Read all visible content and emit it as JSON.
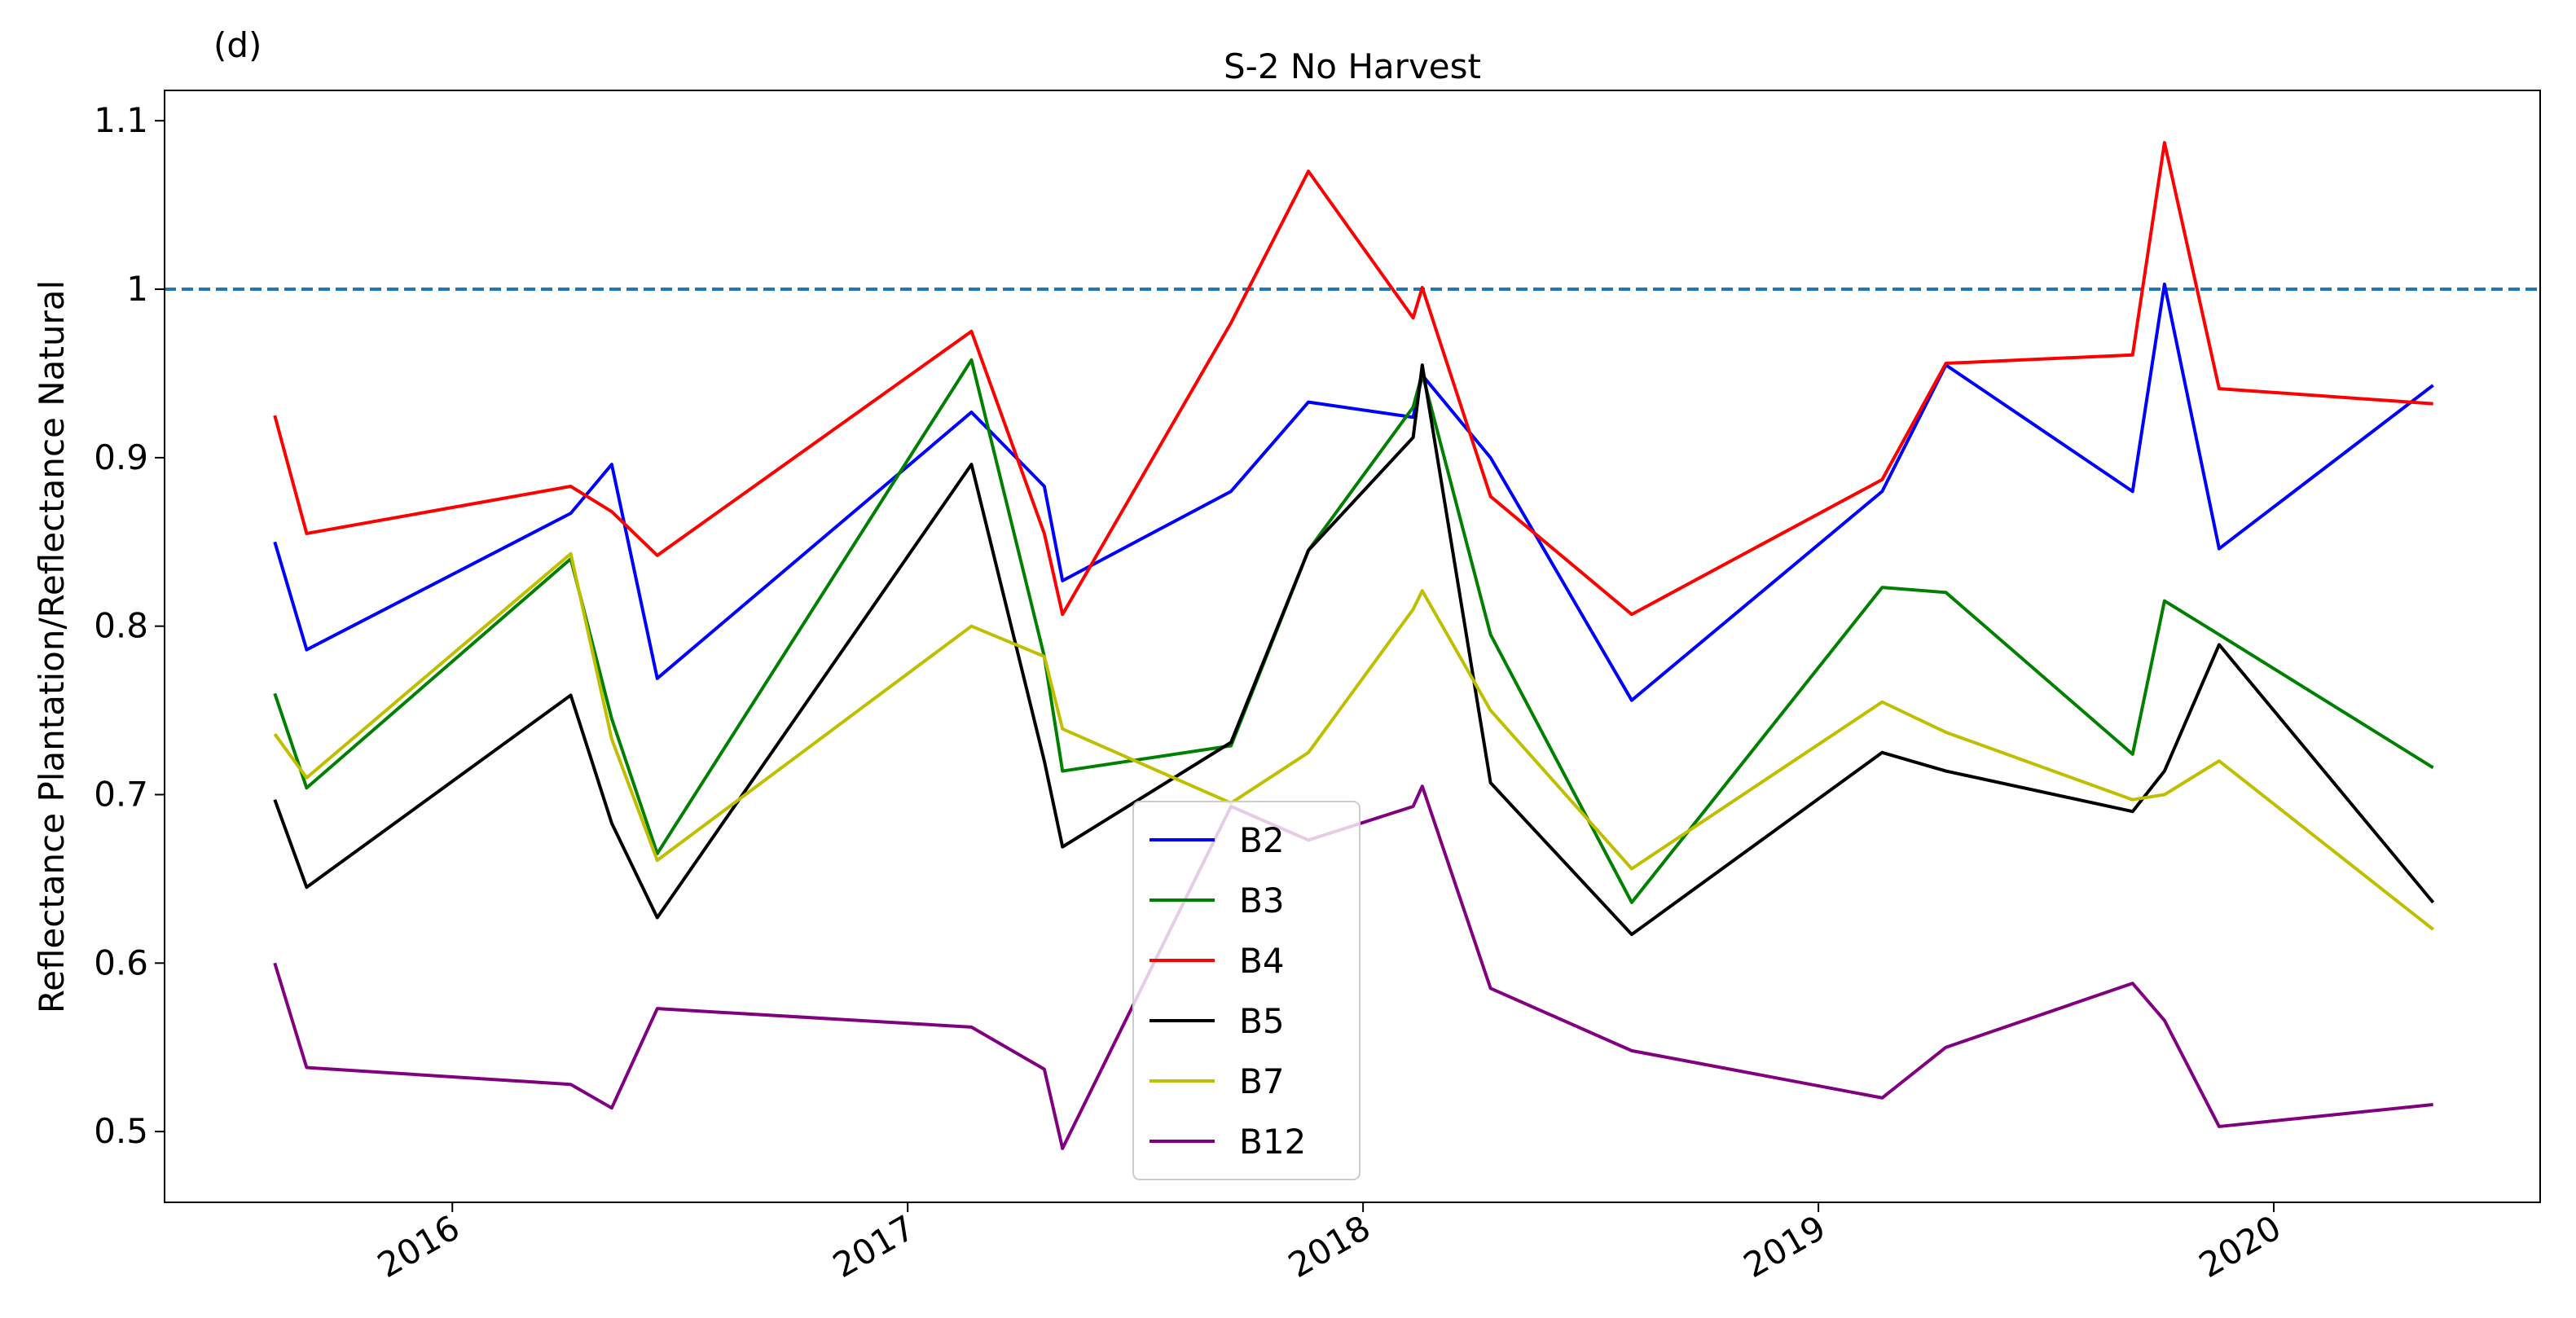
{
  "chart_data": {
    "type": "line",
    "panel_label": "(d)",
    "title": "S-2 No Harvest",
    "y_label": "Reflectance Plantation/Reflectance Natural",
    "x": [
      2015.61,
      2015.68,
      2016.26,
      2016.35,
      2016.45,
      2017.14,
      2017.3,
      2017.34,
      2017.71,
      2017.88,
      2018.11,
      2018.13,
      2018.28,
      2018.59,
      2019.14,
      2019.28,
      2019.69,
      2019.76,
      2019.88,
      2020.35
    ],
    "series": [
      {
        "name": "B2",
        "color": "#0000ff",
        "values": [
          0.85,
          0.786,
          0.867,
          0.896,
          0.769,
          0.927,
          0.883,
          0.827,
          0.88,
          0.933,
          0.924,
          0.949,
          0.9,
          0.756,
          0.88,
          0.955,
          0.88,
          1.003,
          0.846,
          0.943
        ]
      },
      {
        "name": "B3",
        "color": "#008000",
        "values": [
          0.76,
          0.704,
          0.84,
          0.745,
          0.665,
          0.958,
          0.782,
          0.714,
          0.729,
          0.845,
          0.93,
          0.95,
          0.795,
          0.636,
          0.823,
          0.82,
          0.724,
          0.815,
          0.795,
          0.716
        ]
      },
      {
        "name": "B4",
        "color": "#ff0000",
        "values": [
          0.925,
          0.855,
          0.883,
          0.868,
          0.842,
          0.975,
          0.855,
          0.807,
          0.98,
          1.07,
          0.983,
          1.001,
          0.877,
          0.807,
          0.887,
          0.956,
          0.961,
          1.087,
          0.941,
          0.932
        ]
      },
      {
        "name": "B5",
        "color": "#000000",
        "values": [
          0.697,
          0.645,
          0.759,
          0.683,
          0.627,
          0.896,
          0.72,
          0.669,
          0.731,
          0.845,
          0.912,
          0.955,
          0.707,
          0.617,
          0.725,
          0.714,
          0.69,
          0.714,
          0.789,
          0.636
        ]
      },
      {
        "name": "B7",
        "color": "#bfbf00",
        "values": [
          0.736,
          0.71,
          0.843,
          0.733,
          0.661,
          0.8,
          0.782,
          0.739,
          0.695,
          0.725,
          0.81,
          0.821,
          0.75,
          0.656,
          0.755,
          0.737,
          0.697,
          0.7,
          0.72,
          0.62
        ]
      },
      {
        "name": "B12",
        "color": "#800080",
        "values": [
          0.6,
          0.538,
          0.528,
          0.514,
          0.573,
          0.562,
          0.537,
          0.49,
          0.693,
          0.673,
          0.693,
          0.705,
          0.585,
          0.548,
          0.52,
          0.55,
          0.588,
          0.566,
          0.503,
          0.516
        ]
      }
    ],
    "hline": {
      "value": 1.0,
      "color": "#1f77b4"
    },
    "xlim": [
      2015.368,
      2020.585
    ],
    "xticks": [
      2016,
      2017,
      2018,
      2019,
      2020
    ],
    "ylim": [
      0.458,
      1.118
    ],
    "yticks": [
      0.5,
      0.6,
      0.7,
      0.8,
      0.9,
      1.0,
      1.1
    ],
    "legend": "lower center"
  }
}
